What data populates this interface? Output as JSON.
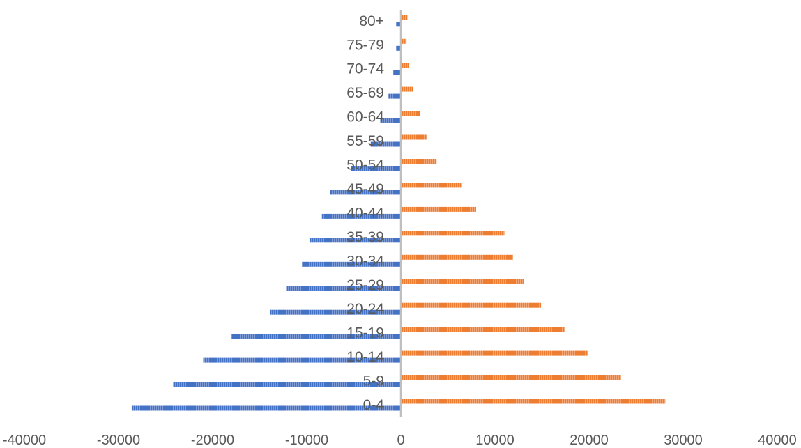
{
  "chart_data": {
    "type": "bar",
    "orientation": "horizontal",
    "title": "",
    "xlabel": "",
    "ylabel": "",
    "xlim": [
      -40000,
      40000
    ],
    "xticks": [
      -40000,
      -30000,
      -20000,
      -10000,
      0,
      10000,
      20000,
      30000,
      40000
    ],
    "grid": false,
    "legend": "none",
    "categories": [
      "0-4",
      "5-9",
      "10-14",
      "15-19",
      "20-24",
      "25-29",
      "30-34",
      "35-39",
      "40-44",
      "45-49",
      "50-54",
      "55-59",
      "60-64",
      "65-69",
      "70-74",
      "75-79",
      "80+"
    ],
    "series": [
      {
        "color": "#4472C4",
        "values": [
          -28600,
          -24200,
          -21000,
          -18000,
          -13900,
          -12200,
          -10500,
          -9700,
          -8400,
          -7500,
          -5300,
          -3200,
          -2200,
          -1400,
          -800,
          -500,
          -500
        ]
      },
      {
        "color": "#ED7D31",
        "values": [
          28100,
          23400,
          19900,
          17400,
          14900,
          13100,
          11900,
          11000,
          8000,
          6500,
          3800,
          2800,
          2000,
          1300,
          900,
          600,
          700
        ]
      }
    ],
    "axis_color": "#BFBFBF"
  }
}
